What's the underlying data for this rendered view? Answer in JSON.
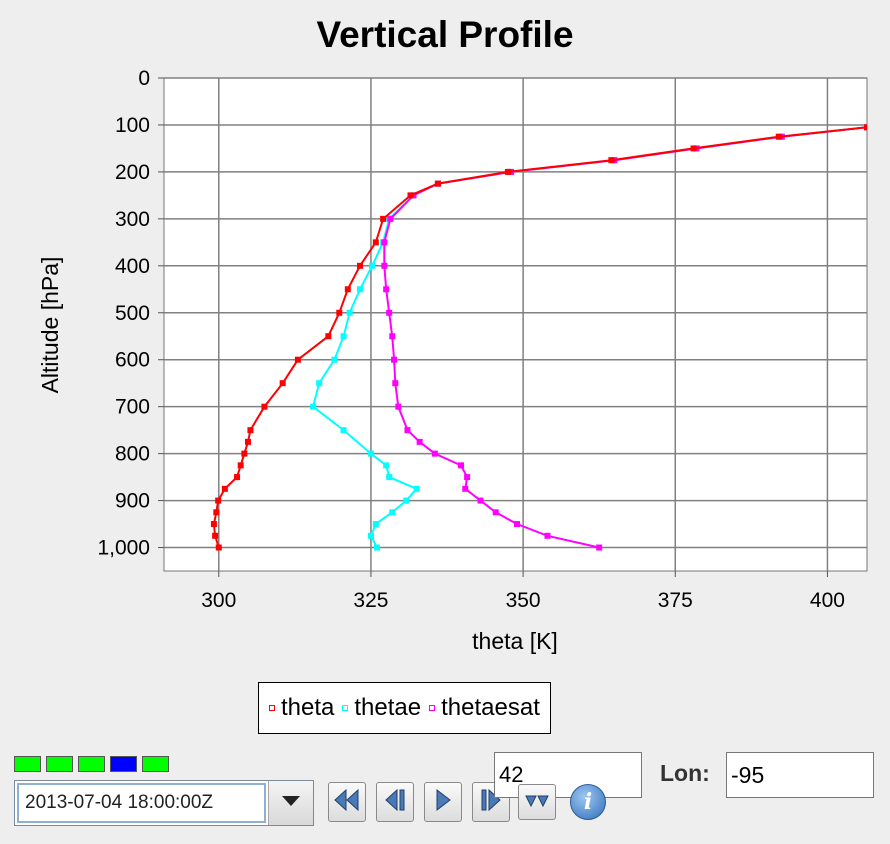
{
  "chart_data": {
    "type": "line",
    "title": "Vertical Profile",
    "xlabel": "theta [K]",
    "ylabel": "Altitude [hPa]",
    "xlim": [
      291,
      406.5
    ],
    "ylim": [
      1050,
      0
    ],
    "y_inverted": true,
    "grid": true,
    "legend_position": "bottom-center",
    "x_ticks": [
      "300",
      "325",
      "350",
      "375",
      "400"
    ],
    "y_ticks": [
      "0",
      "100",
      "200",
      "300",
      "400",
      "500",
      "600",
      "700",
      "800",
      "900",
      "1,000"
    ],
    "series": [
      {
        "name": "theta",
        "color": "#ff0000",
        "points": [
          [
            300.0,
            1000
          ],
          [
            299.4,
            975
          ],
          [
            299.2,
            950
          ],
          [
            299.6,
            925
          ],
          [
            299.9,
            900
          ],
          [
            301.0,
            875
          ],
          [
            303.0,
            850
          ],
          [
            303.6,
            825
          ],
          [
            304.2,
            800
          ],
          [
            304.8,
            775
          ],
          [
            305.2,
            750
          ],
          [
            307.5,
            700
          ],
          [
            310.5,
            650
          ],
          [
            313.0,
            600
          ],
          [
            318.0,
            550
          ],
          [
            319.8,
            500
          ],
          [
            321.2,
            450
          ],
          [
            323.2,
            400
          ],
          [
            325.8,
            350
          ],
          [
            327.0,
            300
          ],
          [
            331.5,
            250
          ],
          [
            336.0,
            225
          ],
          [
            347.5,
            200
          ],
          [
            364.5,
            175
          ],
          [
            378.0,
            150
          ],
          [
            392.0,
            125
          ],
          [
            406.5,
            105
          ]
        ]
      },
      {
        "name": "thetae",
        "color": "#00ffff",
        "points": [
          [
            326.0,
            1000
          ],
          [
            325.0,
            975
          ],
          [
            325.8,
            950
          ],
          [
            328.5,
            925
          ],
          [
            330.8,
            900
          ],
          [
            332.5,
            875
          ],
          [
            328.0,
            850
          ],
          [
            327.5,
            825
          ],
          [
            325.0,
            800
          ],
          [
            320.5,
            750
          ],
          [
            315.5,
            700
          ],
          [
            316.5,
            650
          ],
          [
            319.0,
            600
          ],
          [
            320.5,
            550
          ],
          [
            321.5,
            500
          ],
          [
            323.2,
            450
          ],
          [
            325.2,
            400
          ],
          [
            327.0,
            350
          ],
          [
            328.0,
            300
          ],
          [
            332.0,
            250
          ],
          [
            336.0,
            225
          ],
          [
            348.0,
            200
          ],
          [
            365.0,
            175
          ],
          [
            378.5,
            150
          ],
          [
            392.5,
            125
          ],
          [
            406.5,
            105
          ]
        ]
      },
      {
        "name": "thetaesat",
        "color": "#ff00ff",
        "points": [
          [
            362.5,
            1000
          ],
          [
            354.0,
            975
          ],
          [
            349.0,
            950
          ],
          [
            345.5,
            925
          ],
          [
            343.0,
            900
          ],
          [
            340.5,
            875
          ],
          [
            340.8,
            850
          ],
          [
            339.8,
            825
          ],
          [
            335.5,
            800
          ],
          [
            333.0,
            775
          ],
          [
            331.0,
            750
          ],
          [
            329.5,
            700
          ],
          [
            329.0,
            650
          ],
          [
            328.8,
            600
          ],
          [
            328.5,
            550
          ],
          [
            328.0,
            500
          ],
          [
            327.5,
            450
          ],
          [
            327.2,
            400
          ],
          [
            327.2,
            350
          ],
          [
            328.2,
            300
          ],
          [
            332.0,
            250
          ],
          [
            336.0,
            225
          ],
          [
            348.0,
            200
          ],
          [
            365.0,
            175
          ],
          [
            378.5,
            150
          ],
          [
            392.5,
            125
          ],
          [
            406.5,
            105
          ]
        ]
      }
    ]
  },
  "legend": {
    "entries": [
      {
        "label": "theta",
        "color": "#ff0000"
      },
      {
        "label": "thetae",
        "color": "#00ffff"
      },
      {
        "label": "thetaesat",
        "color": "#ff00ff"
      }
    ]
  },
  "animation_strip": {
    "boxes": [
      {
        "color": "#00ff00"
      },
      {
        "color": "#00ff00"
      },
      {
        "color": "#00ff00"
      },
      {
        "color": "#0000ff"
      },
      {
        "color": "#00ff00"
      }
    ]
  },
  "controls": {
    "time_value": "2013-07-04 18:00:00Z",
    "dropdown_icon": "triangle-down-icon",
    "buttons": [
      {
        "icon": "rewind-icon"
      },
      {
        "icon": "step-back-icon"
      },
      {
        "icon": "play-icon"
      },
      {
        "icon": "step-forward-icon"
      },
      {
        "icon": "fast-forward-icon"
      }
    ],
    "info_icon": "info-icon",
    "info_glyph": "i",
    "lat_value": "42",
    "lon_label": "Lon:",
    "lon_value": "-95"
  }
}
